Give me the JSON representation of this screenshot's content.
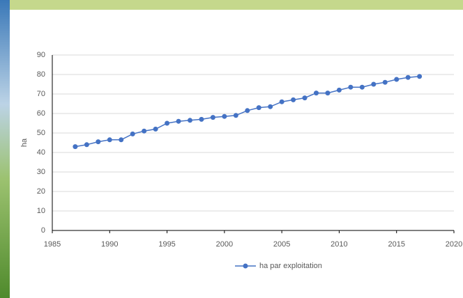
{
  "chart_data": {
    "type": "line",
    "x": [
      1987,
      1988,
      1989,
      1990,
      1991,
      1992,
      1993,
      1994,
      1995,
      1996,
      1997,
      1998,
      1999,
      2000,
      2001,
      2002,
      2003,
      2004,
      2005,
      2006,
      2007,
      2008,
      2009,
      2010,
      2011,
      2012,
      2013,
      2014,
      2015,
      2016,
      2017
    ],
    "series": [
      {
        "name": "ha par exploitation",
        "color": "#4472c4",
        "values": [
          43,
          44,
          45.5,
          46.5,
          46.5,
          49.5,
          51,
          52,
          55,
          56,
          56.5,
          57,
          58,
          58.5,
          59,
          61.5,
          63,
          63.5,
          66,
          67,
          68,
          70.5,
          70.5,
          72,
          73.5,
          73.5,
          75,
          76,
          77.5,
          78.5,
          79
        ]
      }
    ],
    "y_label": "ha",
    "xlim": [
      1985,
      2020
    ],
    "xticks": [
      1985,
      1990,
      1995,
      2000,
      2005,
      2010,
      2015,
      2020
    ],
    "ylim": [
      0,
      90
    ],
    "yticks": [
      0,
      10,
      20,
      30,
      40,
      50,
      60,
      70,
      80,
      90
    ],
    "grid": true,
    "legend": "bottom"
  }
}
